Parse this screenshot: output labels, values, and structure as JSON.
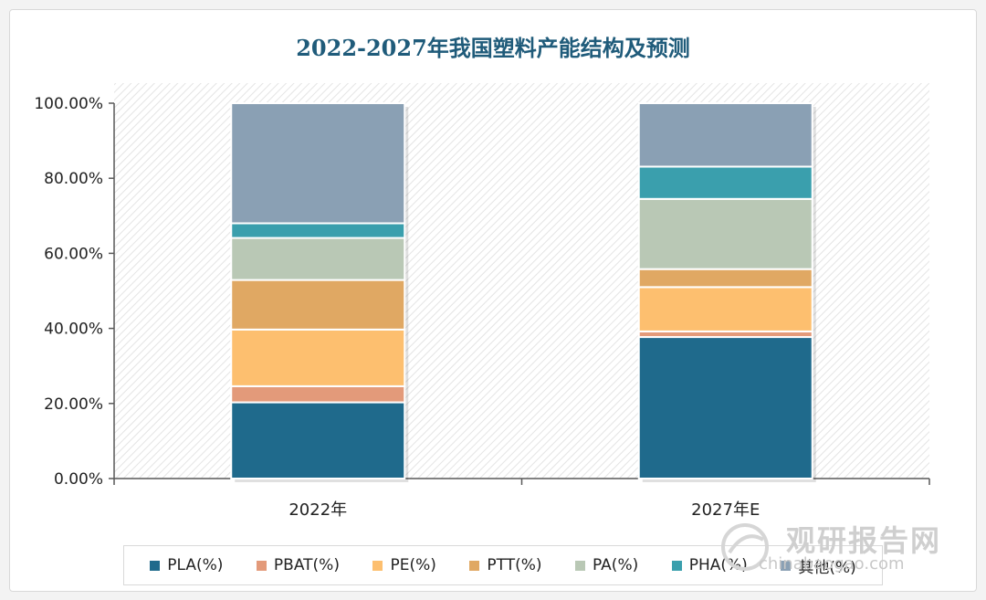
{
  "chart_data": {
    "type": "bar",
    "stacked": true,
    "title": "2022-2027年我国塑料产能结构及预测",
    "categories": [
      "2022年",
      "2027年E"
    ],
    "ylim": [
      0,
      100
    ],
    "yticks": [
      "0.00%",
      "20.00%",
      "40.00%",
      "60.00%",
      "80.00%",
      "100.00%"
    ],
    "series": [
      {
        "name": "PLA(%)",
        "color": "#1f6a8c",
        "values": [
          20.3,
          37.7
        ]
      },
      {
        "name": "PBAT(%)",
        "color": "#e39a7a",
        "values": [
          4.3,
          1.5
        ]
      },
      {
        "name": "PE(%)",
        "color": "#fdbf6f",
        "values": [
          15.1,
          11.8
        ]
      },
      {
        "name": "PTT(%)",
        "color": "#e0a863",
        "values": [
          13.2,
          4.8
        ]
      },
      {
        "name": "PA(%)",
        "color": "#b9c8b5",
        "values": [
          11.2,
          18.7
        ]
      },
      {
        "name": "PHA(%)",
        "color": "#3a9fad",
        "values": [
          3.9,
          8.6
        ]
      },
      {
        "name": "其他(%)",
        "color": "#8aa0b4",
        "values": [
          32.0,
          16.9
        ]
      }
    ],
    "grid": false,
    "legend_position": "bottom"
  },
  "watermark": {
    "text": "观研报告网",
    "url": "chinabaogao.com"
  }
}
